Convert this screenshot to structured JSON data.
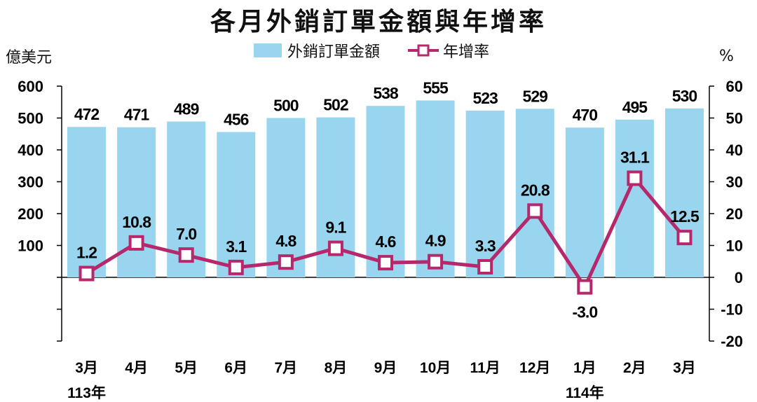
{
  "colors": {
    "bar": "#99d5ee",
    "line": "#b5286b",
    "marker_fill": "#ffffff"
  },
  "chart_data": {
    "type": "bar",
    "title": "各月外銷訂單金額與年增率",
    "left_axis_unit": "億美元",
    "right_axis_unit": "%",
    "categories": [
      "3月",
      "4月",
      "5月",
      "6月",
      "7月",
      "8月",
      "9月",
      "10月",
      "11月",
      "12月",
      "1月",
      "2月",
      "3月"
    ],
    "year_labels": [
      {
        "category_index": 0,
        "label": "113年"
      },
      {
        "category_index": 10,
        "label": "114年"
      }
    ],
    "series": [
      {
        "name": "外銷訂單金額",
        "type": "bar",
        "axis": "left",
        "values": [
          472,
          471,
          489,
          456,
          500,
          502,
          538,
          555,
          523,
          529,
          470,
          495,
          530
        ],
        "labels": [
          "472",
          "471",
          "489",
          "456",
          "500",
          "502",
          "538",
          "555",
          "523",
          "529",
          "470",
          "495",
          "530"
        ]
      },
      {
        "name": "年增率",
        "type": "line",
        "axis": "right",
        "values": [
          1.2,
          10.8,
          7.0,
          3.1,
          4.8,
          9.1,
          4.6,
          4.9,
          3.3,
          20.8,
          -3.0,
          31.1,
          12.5
        ],
        "labels": [
          "1.2",
          "10.8",
          "7.0",
          "3.1",
          "4.8",
          "9.1",
          "4.6",
          "4.9",
          "3.3",
          "20.8",
          "-3.0",
          "31.1",
          "12.5"
        ]
      }
    ],
    "left_axis": {
      "min": -200,
      "max": 600,
      "ticks": [
        600,
        500,
        400,
        300,
        200,
        100,
        0,
        -100,
        -200
      ],
      "tick_labels": [
        "600",
        "500",
        "400",
        "300",
        "200",
        "100",
        "",
        "",
        ""
      ]
    },
    "right_axis": {
      "min": -20,
      "max": 60,
      "ticks": [
        60,
        50,
        40,
        30,
        20,
        10,
        0,
        -10,
        -20
      ],
      "tick_labels": [
        "60",
        "50",
        "40",
        "30",
        "20",
        "10",
        "0",
        "-10",
        "-20"
      ]
    },
    "legend": [
      "外銷訂單金額",
      "年增率"
    ]
  }
}
